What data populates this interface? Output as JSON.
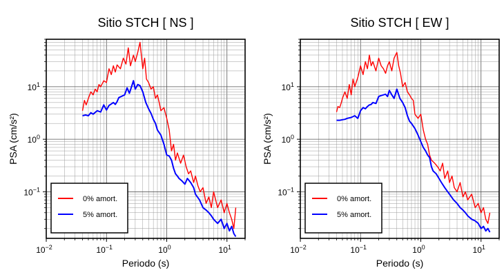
{
  "figure": {
    "background": "#ffffff"
  },
  "chart_data": [
    {
      "type": "line",
      "title": "Sitio STCH [ NS ]",
      "xlabel": "Periodo (s)",
      "ylabel": "PSA (cm/s²)",
      "xscale": "log",
      "yscale": "log",
      "xlim": [
        0.01,
        20
      ],
      "ylim": [
        0.013,
        80
      ],
      "xticks": [
        {
          "value": 0.01,
          "base": "10",
          "exp": "−2"
        },
        {
          "value": 0.1,
          "base": "10",
          "exp": "−1"
        },
        {
          "value": 1,
          "base": "10",
          "exp": "0"
        },
        {
          "value": 10,
          "base": "10",
          "exp": "1"
        }
      ],
      "yticks": [
        {
          "value": 0.1,
          "base": "10",
          "exp": "−1"
        },
        {
          "value": 1,
          "base": "10",
          "exp": "0"
        },
        {
          "value": 10,
          "base": "10",
          "exp": "1"
        }
      ],
      "grid": true,
      "legend_position": "bottom-left",
      "series": [
        {
          "name": "0% amort.",
          "color": "#ff0000",
          "x": [
            0.04,
            0.043,
            0.046,
            0.05,
            0.055,
            0.06,
            0.065,
            0.07,
            0.075,
            0.08,
            0.09,
            0.1,
            0.11,
            0.12,
            0.13,
            0.14,
            0.15,
            0.17,
            0.19,
            0.21,
            0.23,
            0.25,
            0.28,
            0.3,
            0.33,
            0.36,
            0.4,
            0.43,
            0.46,
            0.5,
            0.55,
            0.6,
            0.65,
            0.7,
            0.75,
            0.8,
            0.9,
            1.0,
            1.1,
            1.2,
            1.3,
            1.4,
            1.5,
            1.7,
            1.9,
            2.1,
            2.3,
            2.5,
            2.8,
            3.0,
            3.3,
            3.6,
            4.0,
            4.5,
            5.0,
            5.5,
            6.0,
            7.0,
            8.0,
            9.0,
            10.0,
            11.0,
            12.0,
            13.0,
            14.0
          ],
          "values": [
            3.5,
            5.5,
            4.5,
            6,
            8,
            7,
            9,
            8,
            11,
            10,
            13,
            12,
            22,
            17,
            25,
            19,
            26,
            22,
            35,
            27,
            55,
            25,
            40,
            30,
            45,
            70,
            22,
            35,
            14,
            12,
            9,
            10,
            6,
            7,
            5,
            3.5,
            4,
            2.5,
            1.5,
            0.6,
            0.8,
            0.4,
            0.55,
            0.35,
            0.5,
            0.3,
            0.22,
            0.25,
            0.15,
            0.2,
            0.13,
            0.1,
            0.12,
            0.06,
            0.08,
            0.05,
            0.1,
            0.05,
            0.07,
            0.04,
            0.06,
            0.04,
            0.03,
            0.02,
            0.05
          ]
        },
        {
          "name": "5% amort.",
          "color": "#0000ff",
          "x": [
            0.04,
            0.045,
            0.05,
            0.055,
            0.06,
            0.07,
            0.08,
            0.09,
            0.1,
            0.11,
            0.12,
            0.13,
            0.14,
            0.15,
            0.16,
            0.18,
            0.2,
            0.22,
            0.24,
            0.26,
            0.28,
            0.3,
            0.33,
            0.36,
            0.4,
            0.45,
            0.5,
            0.55,
            0.6,
            0.65,
            0.7,
            0.8,
            0.9,
            1.0,
            1.1,
            1.2,
            1.3,
            1.4,
            1.5,
            1.6,
            1.8,
            2.0,
            2.2,
            2.5,
            2.8,
            3.0,
            3.5,
            4.0,
            4.5,
            5.0,
            5.5,
            6.0,
            7.0,
            8.0,
            9.0,
            10.0,
            11.0,
            12.0,
            13.0,
            14.0
          ],
          "values": [
            2.8,
            2.9,
            2.8,
            3.2,
            3.0,
            3.5,
            3.3,
            4.5,
            3.6,
            4.4,
            4.7,
            5.0,
            4.6,
            5.2,
            6.2,
            6.6,
            7.0,
            9.5,
            7.5,
            10.0,
            13.0,
            9.0,
            11.0,
            10.5,
            8.0,
            5.0,
            3.8,
            3.1,
            2.4,
            2.0,
            1.5,
            1.2,
            0.8,
            0.5,
            0.48,
            0.4,
            0.28,
            0.22,
            0.2,
            0.18,
            0.16,
            0.14,
            0.18,
            0.15,
            0.12,
            0.09,
            0.07,
            0.05,
            0.045,
            0.04,
            0.035,
            0.03,
            0.025,
            0.03,
            0.02,
            0.025,
            0.018,
            0.022,
            0.016,
            0.014
          ]
        }
      ]
    },
    {
      "type": "line",
      "title": "Sitio STCH [ EW ]",
      "xlabel": "Periodo (s)",
      "ylabel": "PSA (cm/s²)",
      "xscale": "log",
      "yscale": "log",
      "xlim": [
        0.01,
        20
      ],
      "ylim": [
        0.013,
        80
      ],
      "xticks": [
        {
          "value": 0.01,
          "base": "10",
          "exp": "−2"
        },
        {
          "value": 0.1,
          "base": "10",
          "exp": "−1"
        },
        {
          "value": 1,
          "base": "10",
          "exp": "0"
        },
        {
          "value": 10,
          "base": "10",
          "exp": "1"
        }
      ],
      "yticks": [
        {
          "value": 0.1,
          "base": "10",
          "exp": "−1"
        },
        {
          "value": 1,
          "base": "10",
          "exp": "0"
        },
        {
          "value": 10,
          "base": "10",
          "exp": "1"
        }
      ],
      "grid": true,
      "legend_position": "bottom-left",
      "series": [
        {
          "name": "0% amort.",
          "color": "#ff0000",
          "x": [
            0.04,
            0.042,
            0.045,
            0.048,
            0.05,
            0.055,
            0.06,
            0.065,
            0.07,
            0.075,
            0.08,
            0.09,
            0.1,
            0.11,
            0.12,
            0.13,
            0.14,
            0.15,
            0.16,
            0.18,
            0.2,
            0.22,
            0.24,
            0.26,
            0.28,
            0.3,
            0.33,
            0.36,
            0.4,
            0.43,
            0.46,
            0.5,
            0.55,
            0.6,
            0.65,
            0.7,
            0.75,
            0.8,
            0.9,
            1.0,
            1.1,
            1.2,
            1.3,
            1.4,
            1.5,
            1.7,
            1.9,
            2.1,
            2.3,
            2.5,
            2.8,
            3.0,
            3.3,
            3.6,
            4.0,
            4.5,
            5.0,
            5.5,
            6.0,
            7.0,
            8.0,
            9.0,
            10.0,
            11.0,
            12.0,
            13.0,
            14.0
          ],
          "values": [
            3.3,
            4.2,
            4.0,
            5.0,
            6.0,
            8.0,
            6.0,
            11.0,
            7.0,
            14.0,
            10.0,
            15.0,
            25.0,
            17.0,
            30.0,
            22.0,
            40.0,
            25.0,
            30.0,
            20.0,
            35.0,
            25.0,
            22.0,
            18.0,
            25.0,
            30.0,
            20.0,
            35.0,
            45.0,
            25.0,
            18.0,
            10.0,
            12.0,
            8.0,
            7.0,
            6.0,
            5.5,
            3.0,
            2.5,
            3.0,
            1.5,
            1.0,
            0.8,
            0.5,
            0.4,
            0.35,
            0.3,
            0.25,
            0.35,
            0.18,
            0.25,
            0.15,
            0.2,
            0.12,
            0.1,
            0.15,
            0.08,
            0.1,
            0.07,
            0.09,
            0.05,
            0.06,
            0.04,
            0.05,
            0.03,
            0.025,
            0.04
          ]
        },
        {
          "name": "5% amort.",
          "color": "#0000ff",
          "x": [
            0.04,
            0.045,
            0.05,
            0.055,
            0.06,
            0.07,
            0.08,
            0.09,
            0.1,
            0.11,
            0.12,
            0.13,
            0.14,
            0.15,
            0.16,
            0.18,
            0.2,
            0.22,
            0.24,
            0.26,
            0.28,
            0.3,
            0.33,
            0.36,
            0.4,
            0.45,
            0.5,
            0.55,
            0.6,
            0.65,
            0.7,
            0.8,
            0.9,
            1.0,
            1.1,
            1.2,
            1.3,
            1.4,
            1.5,
            1.6,
            1.8,
            2.0,
            2.2,
            2.5,
            2.8,
            3.0,
            3.5,
            4.0,
            4.5,
            5.0,
            5.5,
            6.0,
            7.0,
            8.0,
            9.0,
            10.0,
            11.0,
            12.0,
            13.0,
            14.0
          ],
          "values": [
            2.3,
            2.3,
            2.35,
            2.4,
            2.5,
            2.6,
            2.8,
            2.5,
            3.5,
            4.0,
            3.8,
            4.2,
            4.5,
            4.6,
            5.0,
            4.8,
            6.5,
            6.8,
            7.0,
            7.2,
            6.5,
            8.5,
            7.0,
            6.0,
            9.0,
            6.0,
            5.0,
            4.0,
            2.8,
            2.2,
            2.0,
            1.6,
            1.2,
            0.9,
            0.7,
            0.6,
            0.5,
            0.45,
            0.3,
            0.25,
            0.22,
            0.18,
            0.15,
            0.12,
            0.1,
            0.09,
            0.07,
            0.06,
            0.05,
            0.045,
            0.04,
            0.035,
            0.03,
            0.028,
            0.025,
            0.02,
            0.022,
            0.018,
            0.02,
            0.017
          ]
        }
      ]
    }
  ]
}
